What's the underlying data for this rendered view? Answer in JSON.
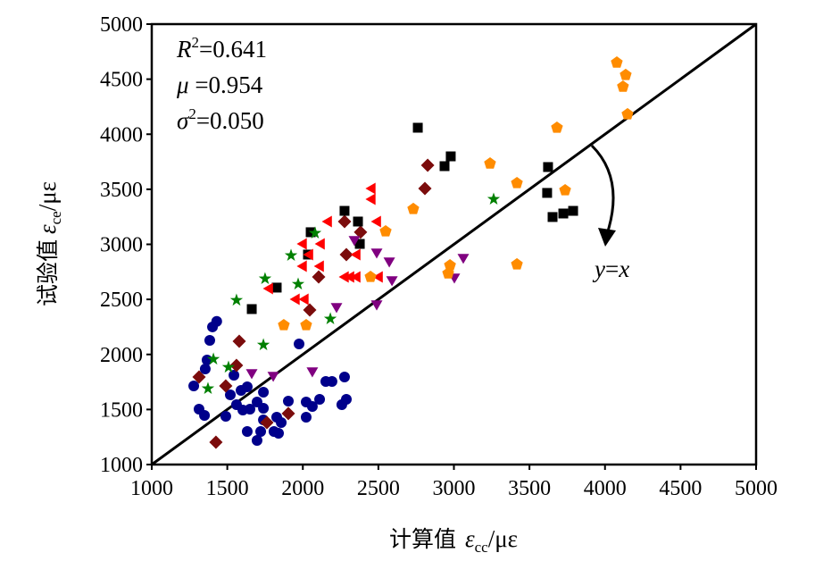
{
  "chart_data": {
    "type": "scatter",
    "title": "",
    "xlabel": {
      "text": "计算值",
      "symbol": "ε",
      "sub": "cc",
      "unit": "/με"
    },
    "ylabel": {
      "text": "试验值",
      "symbol": "ε",
      "sub": "ce",
      "unit": "/με"
    },
    "xlim": [
      1000,
      5000
    ],
    "ylim": [
      1000,
      5000
    ],
    "xticks": [
      "1000",
      "1500",
      "2000",
      "2500",
      "3000",
      "3500",
      "4000",
      "4500",
      "5000"
    ],
    "yticks": [
      "1000",
      "1500",
      "2000",
      "2500",
      "3000",
      "3500",
      "4000",
      "4500",
      "5000"
    ],
    "grid": false,
    "legend": "none",
    "reference_line": {
      "label_y": "y",
      "label_eq": "=",
      "label_x": "x",
      "from": [
        1000,
        1000
      ],
      "to": [
        5000,
        5000
      ]
    },
    "stats": [
      {
        "symbol": "R",
        "sup": "2",
        "value": "=0.641"
      },
      {
        "symbol": "μ",
        "sup": "",
        "value": " =0.954"
      },
      {
        "symbol": "σ",
        "sup": "2",
        "value": "=0.050"
      }
    ],
    "series": [
      {
        "name": "circle",
        "marker": "circle",
        "color": "#00008B",
        "points": [
          [
            1430,
            2300
          ],
          [
            1402,
            2250
          ],
          [
            1384,
            2128
          ],
          [
            1975,
            2095
          ],
          [
            1366,
            1949
          ],
          [
            1354,
            1868
          ],
          [
            1544,
            1811
          ],
          [
            1278,
            1714
          ],
          [
            1632,
            1706
          ],
          [
            1591,
            1673
          ],
          [
            1520,
            1633
          ],
          [
            1739,
            1657
          ],
          [
            2152,
            1755
          ],
          [
            2193,
            1755
          ],
          [
            2276,
            1795
          ],
          [
            1313,
            1503
          ],
          [
            1349,
            1446
          ],
          [
            1490,
            1438
          ],
          [
            1561,
            1544
          ],
          [
            1603,
            1495
          ],
          [
            1650,
            1503
          ],
          [
            1697,
            1568
          ],
          [
            1739,
            1511
          ],
          [
            1904,
            1576
          ],
          [
            2022,
            1568
          ],
          [
            2063,
            1527
          ],
          [
            2111,
            1592
          ],
          [
            2022,
            1430
          ],
          [
            2288,
            1592
          ],
          [
            2258,
            1544
          ],
          [
            1739,
            1406
          ],
          [
            1827,
            1430
          ],
          [
            1857,
            1381
          ],
          [
            1632,
            1300
          ],
          [
            1721,
            1300
          ],
          [
            1697,
            1219
          ],
          [
            1809,
            1300
          ],
          [
            1839,
            1284
          ]
        ]
      },
      {
        "name": "diamond",
        "marker": "diamond",
        "color": "#7B0C0C",
        "points": [
          [
            1579,
            2120
          ],
          [
            1561,
            1901
          ],
          [
            1313,
            1795
          ],
          [
            1490,
            1714
          ],
          [
            1904,
            1463
          ],
          [
            1762,
            1381
          ],
          [
            1425,
            1203
          ],
          [
            2046,
            2404
          ],
          [
            2105,
            2704
          ],
          [
            2276,
            3207
          ],
          [
            2382,
            3110
          ],
          [
            2288,
            2907
          ],
          [
            2826,
            3718
          ],
          [
            2808,
            3507
          ]
        ]
      },
      {
        "name": "square",
        "marker": "square",
        "color": "#000000",
        "points": [
          [
            2761,
            4059
          ],
          [
            2979,
            3799
          ],
          [
            2938,
            3710
          ],
          [
            2276,
            3304
          ],
          [
            2365,
            3207
          ],
          [
            2052,
            3110
          ],
          [
            2377,
            3004
          ],
          [
            2034,
            2907
          ],
          [
            1827,
            2607
          ],
          [
            1662,
            2412
          ],
          [
            3623,
            3702
          ],
          [
            3617,
            3467
          ],
          [
            3653,
            3248
          ],
          [
            3724,
            3280
          ],
          [
            3789,
            3304
          ]
        ]
      },
      {
        "name": "left-triangle",
        "marker": "triangle-left",
        "color": "#FF0000",
        "points": [
          [
            2459,
            3507
          ],
          [
            2459,
            3410
          ],
          [
            2170,
            3207
          ],
          [
            2495,
            3207
          ],
          [
            2004,
            3004
          ],
          [
            2123,
            3004
          ],
          [
            2046,
            2907
          ],
          [
            2359,
            2907
          ],
          [
            2004,
            2801
          ],
          [
            2117,
            2801
          ],
          [
            2282,
            2704
          ],
          [
            2318,
            2704
          ],
          [
            2359,
            2704
          ],
          [
            2507,
            2704
          ],
          [
            1780,
            2598
          ],
          [
            1957,
            2501
          ],
          [
            2016,
            2501
          ]
        ]
      },
      {
        "name": "star",
        "marker": "star",
        "color": "#008000",
        "points": [
          [
            2081,
            3102
          ],
          [
            1922,
            2899
          ],
          [
            1750,
            2688
          ],
          [
            1969,
            2639
          ],
          [
            1561,
            2493
          ],
          [
            3263,
            3410
          ],
          [
            1739,
            2087
          ],
          [
            2182,
            2323
          ],
          [
            1408,
            1957
          ],
          [
            1508,
            1884
          ],
          [
            1372,
            1690
          ]
        ]
      },
      {
        "name": "down-triangle",
        "marker": "triangle-down",
        "color": "#800080",
        "points": [
          [
            2341,
            3045
          ],
          [
            2489,
            2931
          ],
          [
            2572,
            2850
          ],
          [
            2590,
            2680
          ],
          [
            2223,
            2436
          ],
          [
            2489,
            2460
          ],
          [
            3062,
            2883
          ],
          [
            3003,
            2704
          ],
          [
            1662,
            1836
          ],
          [
            1804,
            1811
          ],
          [
            2063,
            1852
          ]
        ]
      },
      {
        "name": "pentagon",
        "marker": "pentagon",
        "color": "#FF8C00",
        "points": [
          [
            4078,
            4651
          ],
          [
            4137,
            4538
          ],
          [
            4119,
            4432
          ],
          [
            4149,
            4181
          ],
          [
            3682,
            4059
          ],
          [
            3239,
            3734
          ],
          [
            3417,
            3556
          ],
          [
            3736,
            3491
          ],
          [
            3417,
            2818
          ],
          [
            2731,
            3321
          ],
          [
            2974,
            2809
          ],
          [
            2962,
            2736
          ],
          [
            2548,
            3118
          ],
          [
            2448,
            2704
          ],
          [
            1874,
            2266
          ],
          [
            2022,
            2266
          ]
        ]
      }
    ]
  }
}
